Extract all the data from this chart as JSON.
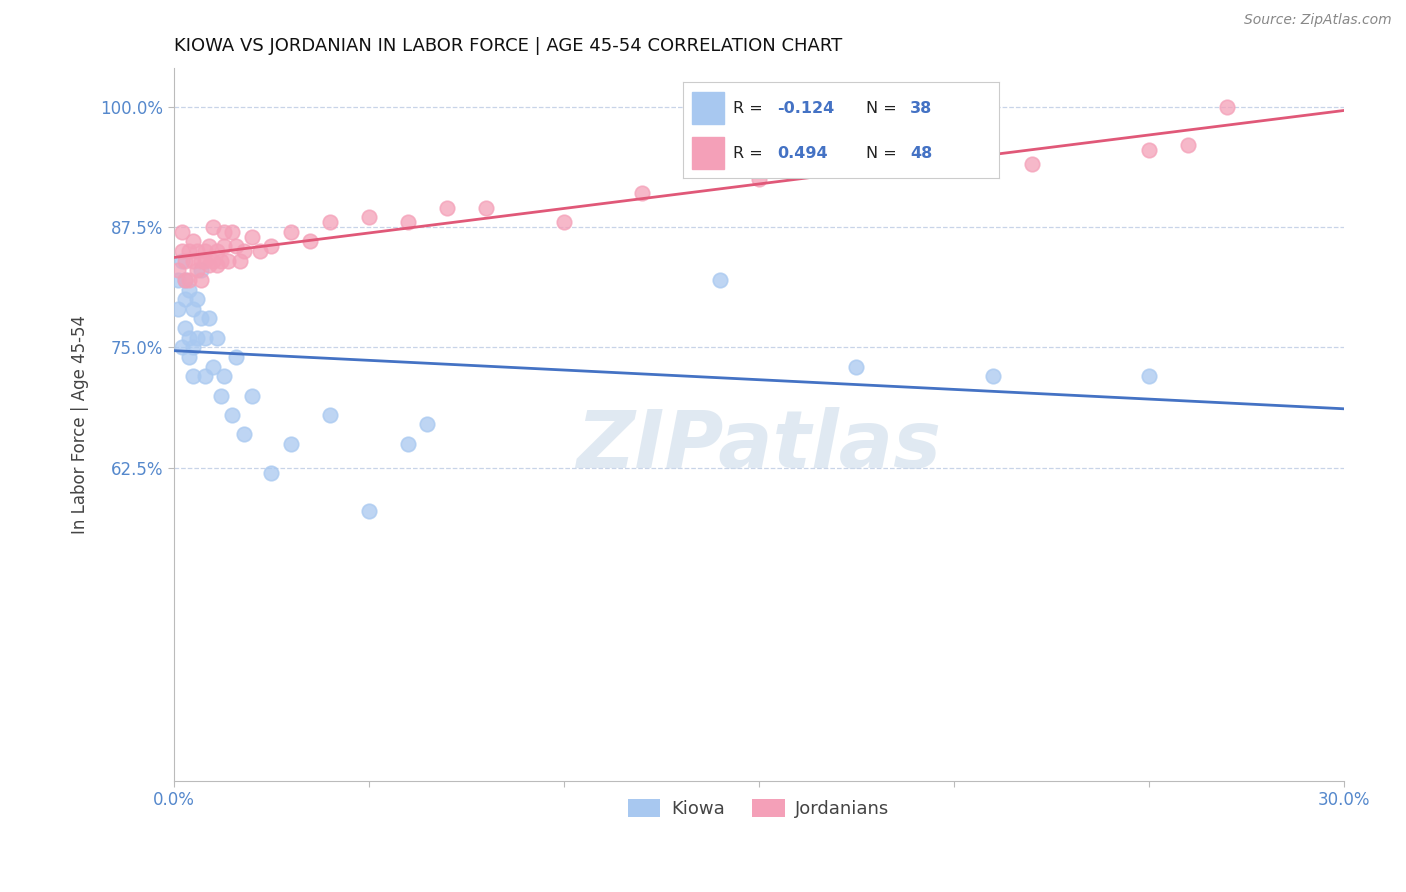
{
  "title": "KIOWA VS JORDANIAN IN LABOR FORCE | AGE 45-54 CORRELATION CHART",
  "source_text": "Source: ZipAtlas.com",
  "xlabel": "",
  "ylabel": "In Labor Force | Age 45-54",
  "xlim": [
    0.0,
    0.3
  ],
  "ylim": [
    0.3,
    1.04
  ],
  "yticks": [
    0.625,
    0.75,
    0.875,
    1.0
  ],
  "ytick_labels": [
    "62.5%",
    "75.0%",
    "87.5%",
    "100.0%"
  ],
  "xticks": [
    0.0,
    0.05,
    0.1,
    0.15,
    0.2,
    0.25,
    0.3
  ],
  "xtick_labels": [
    "0.0%",
    "",
    "",
    "",
    "",
    "",
    "30.0%"
  ],
  "kiowa_R": -0.124,
  "kiowa_N": 38,
  "jordanian_R": 0.494,
  "jordanian_N": 48,
  "kiowa_color": "#a8c8f0",
  "jordanian_color": "#f4a0b8",
  "kiowa_line_color": "#4472c4",
  "jordanian_line_color": "#e05878",
  "background_color": "#ffffff",
  "grid_color": "#c8d4e8",
  "watermark_text": "ZIPatlas",
  "title_fontsize": 13,
  "legend_fontsize": 12,
  "kiowa_x": [
    0.001,
    0.001,
    0.002,
    0.002,
    0.003,
    0.003,
    0.003,
    0.004,
    0.004,
    0.004,
    0.005,
    0.005,
    0.005,
    0.006,
    0.006,
    0.007,
    0.007,
    0.008,
    0.008,
    0.009,
    0.01,
    0.011,
    0.012,
    0.013,
    0.015,
    0.016,
    0.018,
    0.02,
    0.025,
    0.03,
    0.04,
    0.05,
    0.06,
    0.065,
    0.14,
    0.175,
    0.21,
    0.25
  ],
  "kiowa_y": [
    0.82,
    0.79,
    0.84,
    0.75,
    0.8,
    0.77,
    0.82,
    0.81,
    0.76,
    0.74,
    0.79,
    0.75,
    0.72,
    0.76,
    0.8,
    0.78,
    0.83,
    0.76,
    0.72,
    0.78,
    0.73,
    0.76,
    0.7,
    0.72,
    0.68,
    0.74,
    0.66,
    0.7,
    0.62,
    0.65,
    0.68,
    0.58,
    0.65,
    0.67,
    0.82,
    0.73,
    0.72,
    0.72
  ],
  "jordanian_x": [
    0.001,
    0.002,
    0.002,
    0.003,
    0.003,
    0.004,
    0.004,
    0.005,
    0.005,
    0.006,
    0.006,
    0.007,
    0.007,
    0.008,
    0.008,
    0.009,
    0.009,
    0.01,
    0.01,
    0.011,
    0.011,
    0.012,
    0.013,
    0.013,
    0.014,
    0.015,
    0.016,
    0.017,
    0.018,
    0.02,
    0.022,
    0.025,
    0.03,
    0.035,
    0.04,
    0.05,
    0.06,
    0.07,
    0.08,
    0.1,
    0.12,
    0.15,
    0.18,
    0.2,
    0.22,
    0.25,
    0.26,
    0.27
  ],
  "jordanian_y": [
    0.83,
    0.85,
    0.87,
    0.82,
    0.84,
    0.82,
    0.85,
    0.84,
    0.86,
    0.83,
    0.85,
    0.84,
    0.82,
    0.85,
    0.84,
    0.835,
    0.855,
    0.84,
    0.875,
    0.835,
    0.85,
    0.84,
    0.855,
    0.87,
    0.84,
    0.87,
    0.855,
    0.84,
    0.85,
    0.865,
    0.85,
    0.855,
    0.87,
    0.86,
    0.88,
    0.885,
    0.88,
    0.895,
    0.895,
    0.88,
    0.91,
    0.925,
    0.94,
    0.95,
    0.94,
    0.955,
    0.96,
    1.0
  ]
}
